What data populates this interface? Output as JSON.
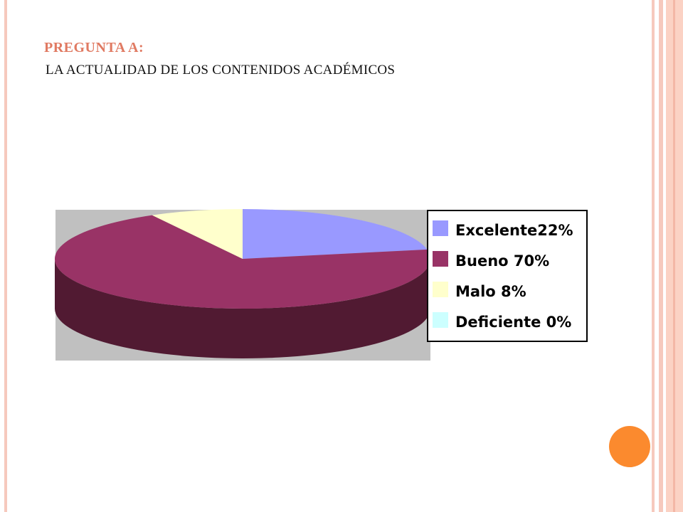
{
  "slide": {
    "title_line1": "PREGUNTA A:",
    "title_line2": "LA ACTUALIDAD DE LOS CONTENIDOS ACADÉMICOS"
  },
  "chart_data": {
    "type": "pie",
    "style": "3d",
    "title": "",
    "legend_position": "right",
    "series": [
      {
        "name": "Excelente",
        "value": 22,
        "label": "Excelente22%",
        "color": "#9999ff",
        "side_color": "#9999ff"
      },
      {
        "name": "Bueno",
        "value": 70,
        "label": "Bueno 70%",
        "color": "#993366",
        "side_color": "#511a32"
      },
      {
        "name": "Malo",
        "value": 8,
        "label": "Malo 8%",
        "color": "#ffffcc",
        "side_color": "#d8d8a8"
      },
      {
        "name": "Deficiente",
        "value": 0,
        "label": "Deficiente 0%",
        "color": "#ccffff",
        "side_color": "#ccffff"
      }
    ],
    "plot_background": "#c0c0c0"
  },
  "colors": {
    "title_accent": "#e07a62",
    "frame": "#f6c9bd",
    "accent_dot": "#fb8a2e"
  }
}
